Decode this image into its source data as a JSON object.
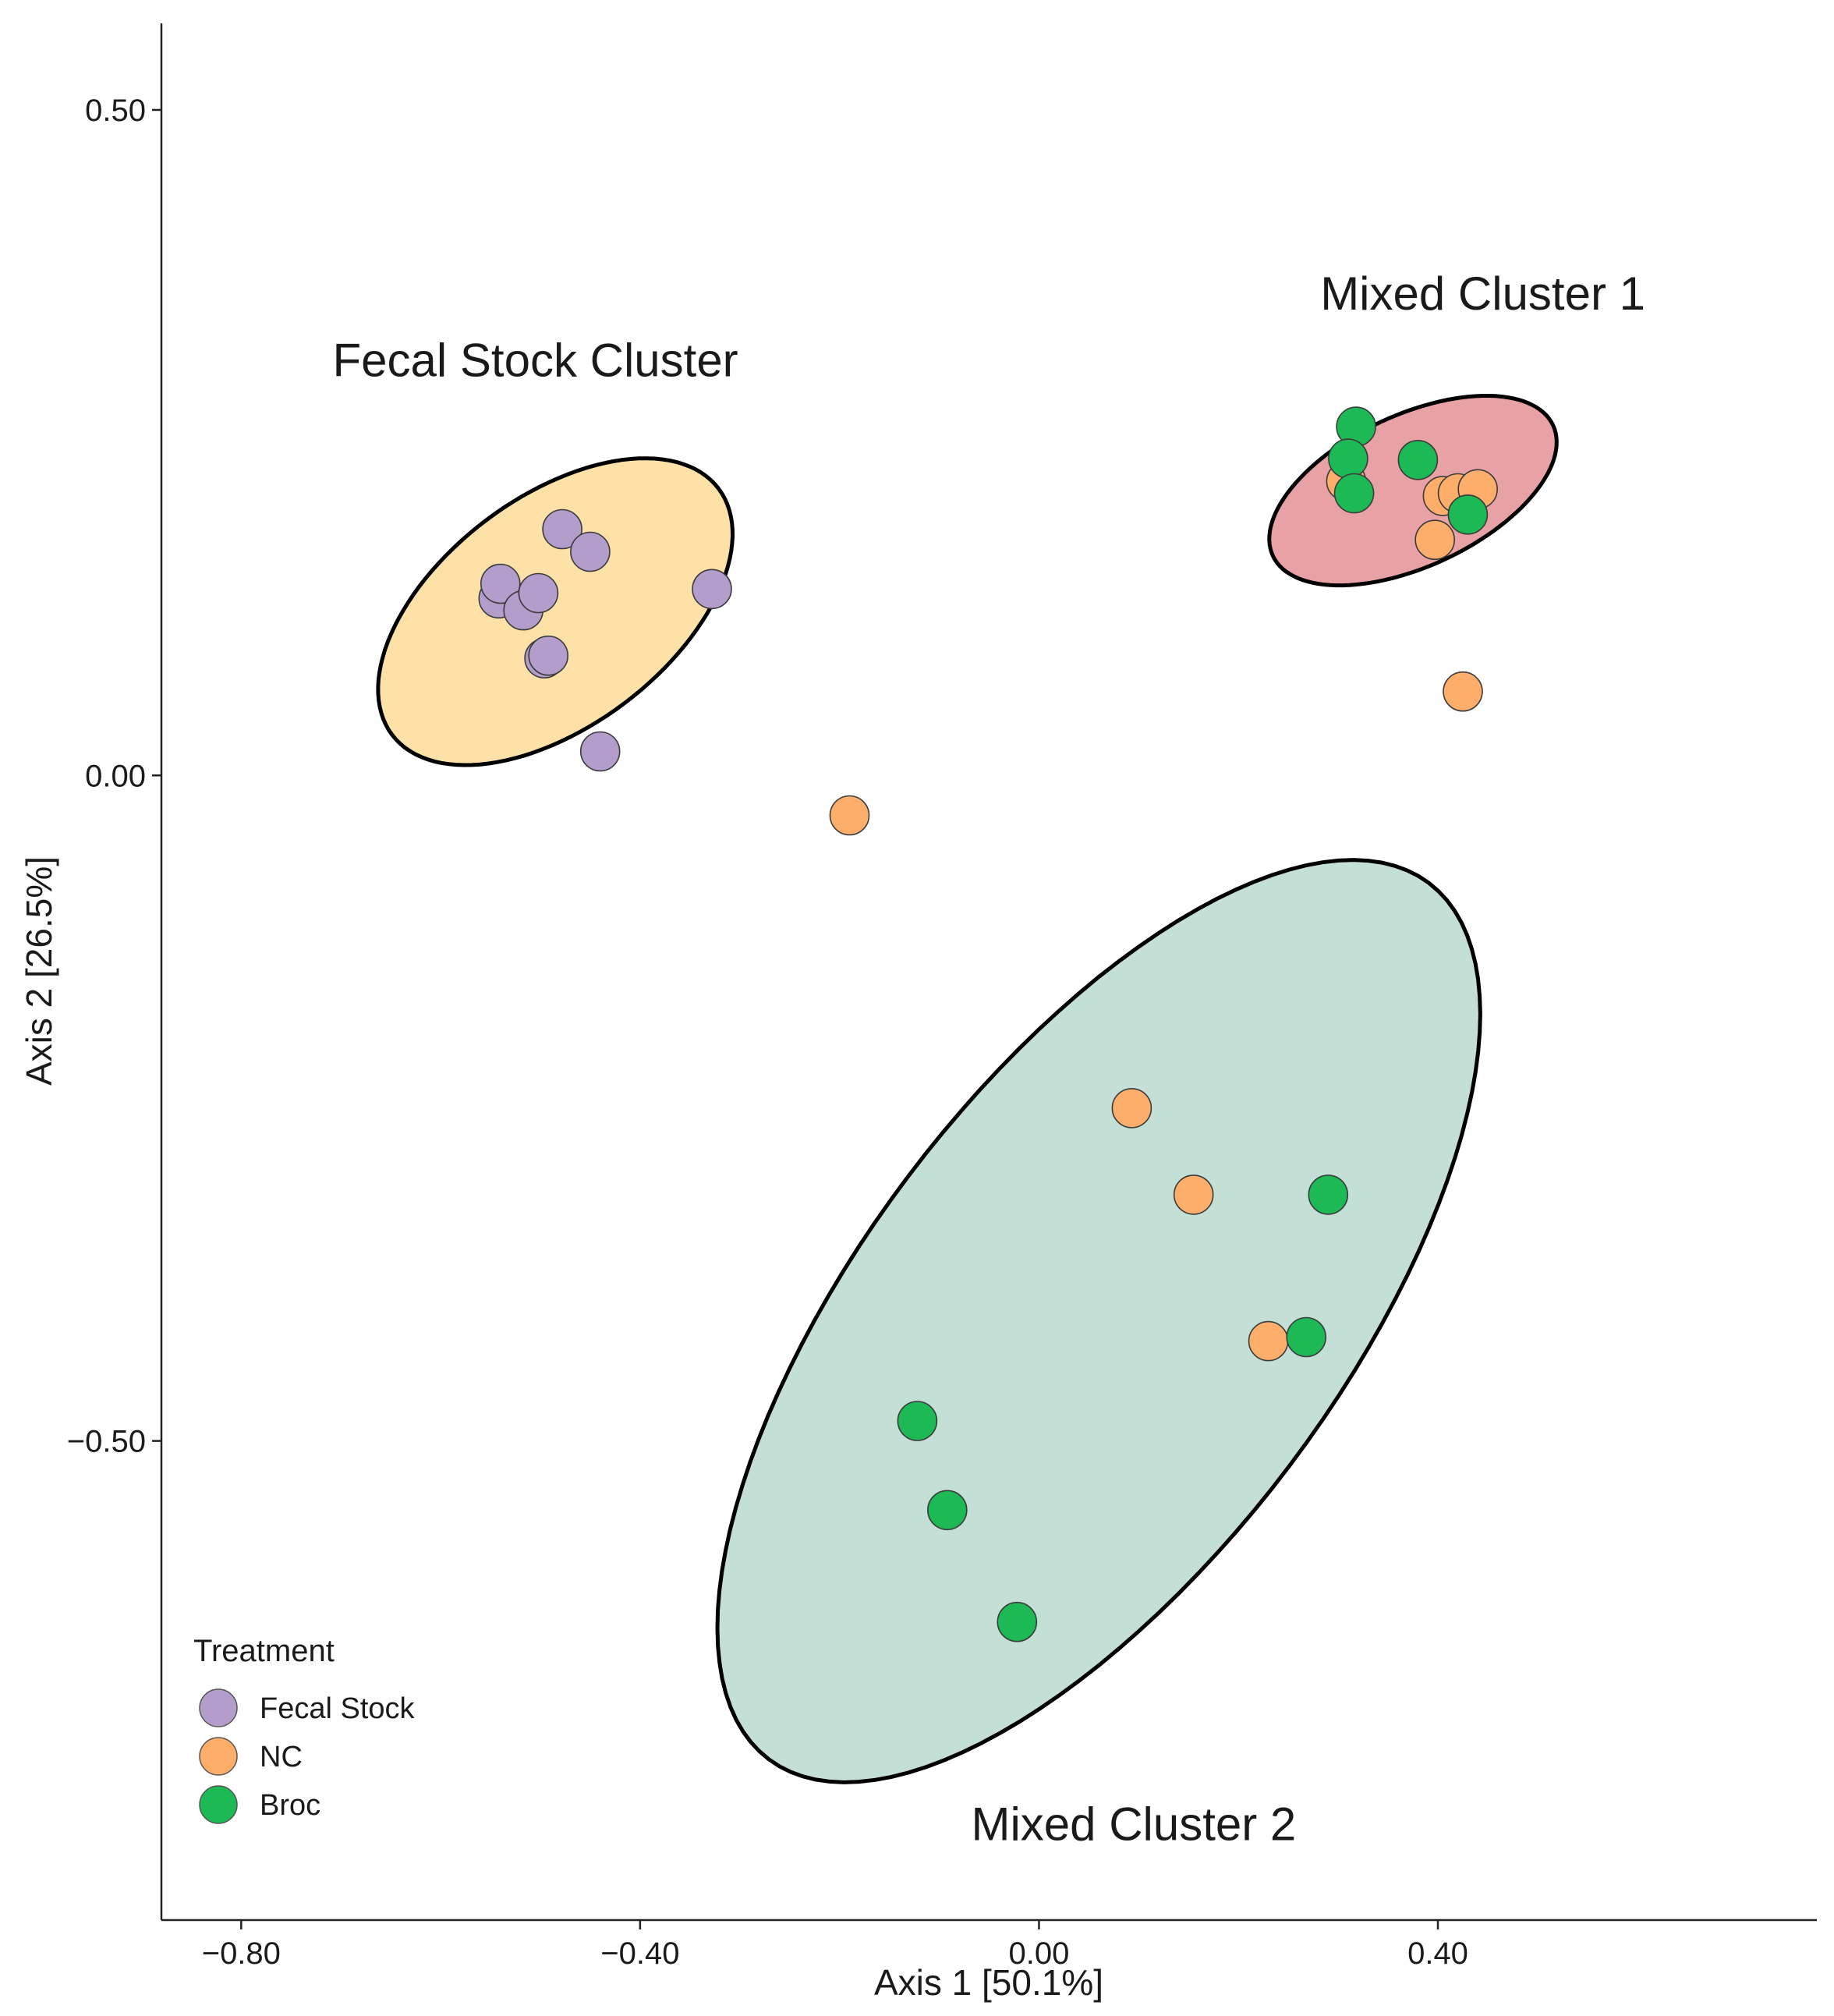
{
  "chart_data": {
    "type": "scatter",
    "title": "",
    "xlabel": "Axis 1 [50.1%]",
    "ylabel": "Axis 2 [26.5%]",
    "xlim": [
      -0.88,
      0.78
    ],
    "ylim": [
      -0.86,
      0.565
    ],
    "grid": false,
    "xticks": [
      {
        "value": -0.8,
        "label": "−0.80"
      },
      {
        "value": -0.4,
        "label": "−0.40"
      },
      {
        "value": 0.0,
        "label": "0.00"
      },
      {
        "value": 0.4,
        "label": "0.40"
      }
    ],
    "yticks": [
      {
        "value": 0.5,
        "label": "0.50"
      },
      {
        "value": 0.0,
        "label": "0.00"
      },
      {
        "value": -0.5,
        "label": "−0.50"
      }
    ],
    "legend": {
      "title": "Treatment",
      "position": "bottom-left",
      "entries": [
        {
          "name": "Fecal Stock",
          "color": "#B39DCB"
        },
        {
          "name": "NC",
          "color": "#FDAE6B"
        },
        {
          "name": "Broc",
          "color": "#1DB954"
        }
      ]
    },
    "ellipses": [
      {
        "name": "Fecal Stock Cluster",
        "label": "Fecal Stock Cluster",
        "fill": "#FDE1A6",
        "cx": -0.485,
        "cy": 0.123,
        "rx": 0.205,
        "ry": 0.115,
        "angle_deg": -37
      },
      {
        "name": "Mixed Cluster 1",
        "label": "Mixed Cluster 1",
        "fill": "#E8A2A5",
        "cx": 0.375,
        "cy": 0.214,
        "rx": 0.155,
        "ry": 0.076,
        "angle_deg": -25
      },
      {
        "name": "Mixed Cluster 2",
        "label": "Mixed Cluster 2",
        "fill": "#C3DFD6",
        "cx": 0.06,
        "cy": -0.41,
        "rx": 0.55,
        "ry": 0.24,
        "angle_deg": -53
      }
    ],
    "cluster_labels": [
      {
        "text": "Fecal Stock Cluster",
        "x": -0.505,
        "y": 0.3
      },
      {
        "text": "Mixed Cluster 1",
        "x": 0.445,
        "y": 0.35
      },
      {
        "text": "Mixed Cluster 2",
        "x": 0.095,
        "y": -0.8
      }
    ],
    "series": [
      {
        "name": "Fecal Stock",
        "color": "#B39DCB",
        "points": [
          {
            "x": -0.478,
            "y": 0.185
          },
          {
            "x": -0.45,
            "y": 0.168
          },
          {
            "x": -0.542,
            "y": 0.133
          },
          {
            "x": -0.54,
            "y": 0.144
          },
          {
            "x": -0.517,
            "y": 0.124
          },
          {
            "x": -0.502,
            "y": 0.137
          },
          {
            "x": -0.496,
            "y": 0.088
          },
          {
            "x": -0.492,
            "y": 0.09
          },
          {
            "x": -0.328,
            "y": 0.14
          },
          {
            "x": -0.44,
            "y": 0.018
          }
        ]
      },
      {
        "name": "NC",
        "color": "#FDAE6B",
        "points": [
          {
            "x": 0.308,
            "y": 0.221
          },
          {
            "x": 0.405,
            "y": 0.21
          },
          {
            "x": 0.42,
            "y": 0.212
          },
          {
            "x": 0.44,
            "y": 0.215
          },
          {
            "x": 0.397,
            "y": 0.177
          },
          {
            "x": 0.425,
            "y": 0.063
          },
          {
            "x": -0.19,
            "y": -0.03
          },
          {
            "x": 0.093,
            "y": -0.25
          },
          {
            "x": 0.155,
            "y": -0.315
          },
          {
            "x": 0.23,
            "y": -0.425
          }
        ]
      },
      {
        "name": "Broc",
        "color": "#1DB954",
        "points": [
          {
            "x": 0.318,
            "y": 0.262
          },
          {
            "x": 0.31,
            "y": 0.238
          },
          {
            "x": 0.316,
            "y": 0.212
          },
          {
            "x": 0.38,
            "y": 0.237
          },
          {
            "x": 0.43,
            "y": 0.196
          },
          {
            "x": 0.29,
            "y": -0.315
          },
          {
            "x": 0.268,
            "y": -0.422
          },
          {
            "x": -0.122,
            "y": -0.485
          },
          {
            "x": -0.092,
            "y": -0.552
          },
          {
            "x": -0.022,
            "y": -0.636
          }
        ]
      }
    ]
  }
}
